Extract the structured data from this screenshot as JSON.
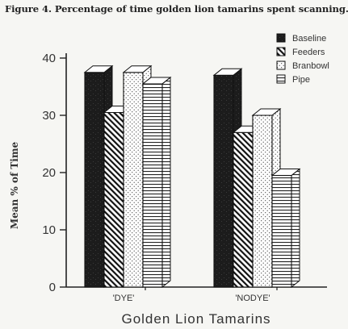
{
  "figure_title": "Figure 4. Percentage of time golden lion tamarins spent scanning.",
  "chart_data": {
    "type": "bar",
    "title": "Figure 4. Percentage of time golden lion tamarins spent scanning.",
    "xlabel": "Golden Lion Tamarins",
    "ylabel": "Mean % of Time",
    "categories": [
      "'DYE'",
      "'NODYE'"
    ],
    "ylim": [
      0,
      40
    ],
    "yticks": [
      0,
      10,
      20,
      30,
      40
    ],
    "series": [
      {
        "name": "Baseline",
        "values": [
          37.5,
          37
        ]
      },
      {
        "name": "Feeders",
        "values": [
          30.5,
          27
        ]
      },
      {
        "name": "Branbowl",
        "values": [
          37.5,
          30
        ]
      },
      {
        "name": "Pipe",
        "values": [
          35.5,
          19.5
        ]
      }
    ],
    "legend_position": "top-right",
    "grid": false,
    "style": "3d-bars"
  }
}
